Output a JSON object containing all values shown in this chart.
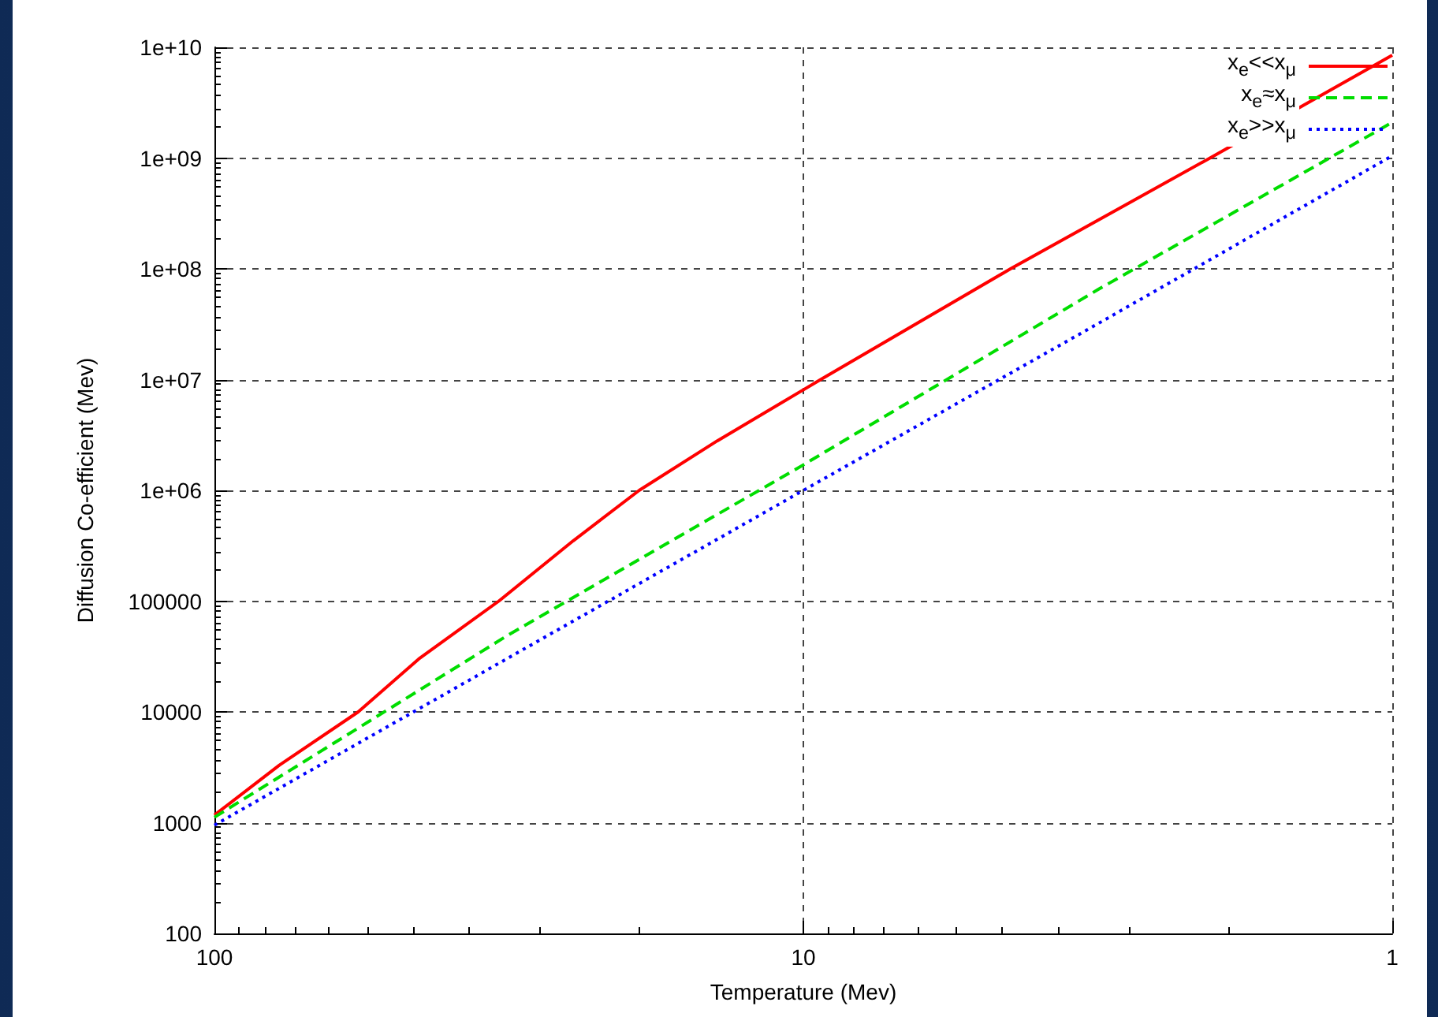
{
  "chart_data": {
    "type": "line",
    "xlabel": "Temperature (Mev)",
    "ylabel": "Diffusion Co-efficient (Mev)",
    "xlim": [
      100,
      1
    ],
    "xticks": [
      100,
      10,
      1
    ],
    "ylim": [
      100,
      10000000000
    ],
    "yticks": [
      {
        "value": 100,
        "label": "100"
      },
      {
        "value": 1000,
        "label": "1000"
      },
      {
        "value": 10000,
        "label": "10000"
      },
      {
        "value": 100000,
        "label": "100000"
      },
      {
        "value": 1000000,
        "label": "1e+06"
      },
      {
        "value": 10000000,
        "label": "1e+07"
      },
      {
        "value": 100000000,
        "label": "1e+08"
      },
      {
        "value": 1000000000,
        "label": "1e+09"
      },
      {
        "value": 10000000000,
        "label": "1e+10"
      }
    ],
    "log": "xy",
    "grid": true,
    "legend": "top right",
    "marker": "none",
    "series": [
      {
        "name": "x$_{e}$<<x$_{μ}$",
        "color": "#ff0000",
        "line_style": "solid",
        "x": [
          100,
          77.6,
          57,
          45,
          32.9,
          24.6,
          19,
          14,
          9.35,
          4.45,
          2.04,
          1
        ],
        "values": [
          1170,
          3300,
          10000,
          30000,
          100000,
          350000,
          1000000,
          2800000,
          10000000,
          100000000,
          1000000000,
          8500000000
        ]
      },
      {
        "name": "x$_{e}$≈x$_{μ}$",
        "color": "#00dd00",
        "line_style": "dashed",
        "x": [
          100,
          31.6,
          10,
          3.16,
          1
        ],
        "values": [
          1120,
          50000,
          1700000,
          65000000,
          2100000000
        ]
      },
      {
        "name": "x$_{e}$>>x$_{μ}$",
        "color": "#0000ff",
        "line_style": "dotted",
        "x": [
          100,
          31.6,
          10,
          3.16,
          1
        ],
        "values": [
          950,
          31000,
          1000000,
          32000000,
          1050000000
        ]
      }
    ]
  }
}
